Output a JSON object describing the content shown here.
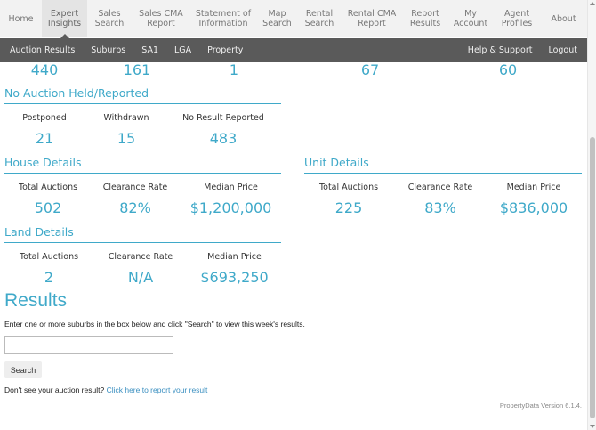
{
  "topnav": {
    "items": [
      {
        "label": "Home"
      },
      {
        "label": "Expert Insights"
      },
      {
        "label": "Sales Search"
      },
      {
        "label": "Sales CMA Report"
      },
      {
        "label": "Statement of Information"
      },
      {
        "label": "Map Search"
      },
      {
        "label": "Rental Search"
      },
      {
        "label": "Rental CMA Report"
      },
      {
        "label": "Report Results"
      },
      {
        "label": "My Account"
      },
      {
        "label": "Agent Profiles"
      },
      {
        "label": "About"
      }
    ]
  },
  "subnav": {
    "items": [
      "Auction Results",
      "Suburbs",
      "SA1",
      "LGA",
      "Property"
    ],
    "right_items": [
      "Help & Support",
      "Logout"
    ]
  },
  "top_numbers": [
    "440",
    "161",
    "1",
    "67",
    "60"
  ],
  "no_auction": {
    "title": "No Auction Held/Reported",
    "labels": [
      "Postponed",
      "Withdrawn",
      "No Result Reported"
    ],
    "values": [
      "21",
      "15",
      "483"
    ]
  },
  "house": {
    "title": "House Details",
    "labels": [
      "Total Auctions",
      "Clearance Rate",
      "Median Price"
    ],
    "values": [
      "502",
      "82%",
      "$1,200,000"
    ]
  },
  "unit": {
    "title": "Unit Details",
    "labels": [
      "Total Auctions",
      "Clearance Rate",
      "Median Price"
    ],
    "values": [
      "225",
      "83%",
      "$836,000"
    ]
  },
  "land": {
    "title": "Land Details",
    "labels": [
      "Total Auctions",
      "Clearance Rate",
      "Median Price"
    ],
    "values": [
      "2",
      "N/A",
      "$693,250"
    ]
  },
  "results": {
    "title": "Results",
    "instructions": "Enter one or more suburbs in the box below and click \"Search\" to view this week's results.",
    "search_value": "",
    "search_button": "Search",
    "report_prefix": "Don't see your auction result?",
    "report_link": "Click here to report your result"
  },
  "footer": {
    "version": "PropertyData Version 6.1.4."
  },
  "colors": {
    "accent": "#3fa9c9",
    "subnav_bg": "#5a5a5a",
    "link": "#3a8fc0"
  }
}
